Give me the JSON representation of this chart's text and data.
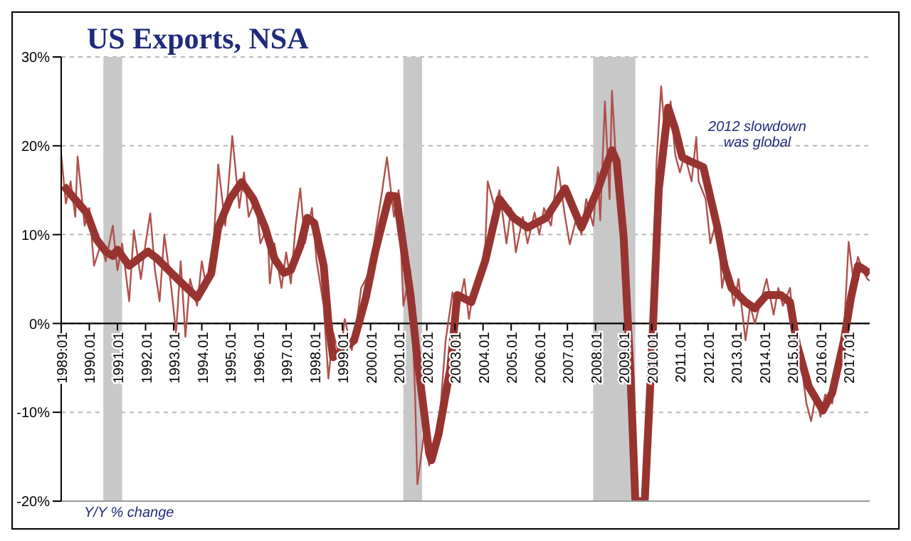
{
  "chart_data": {
    "type": "line",
    "title": "US Exports, NSA",
    "annotations": [
      "2012 slowdown was global",
      "Y/Y % change"
    ],
    "xlim": [
      "1989-01",
      "2017-10"
    ],
    "xticks": [
      {
        "value": "1989-01",
        "label": "1989.01"
      },
      {
        "value": "1990-01",
        "label": "1990.01"
      },
      {
        "value": "1991-01",
        "label": "1991.01"
      },
      {
        "value": "1992-01",
        "label": "1992.01"
      },
      {
        "value": "1993-01",
        "label": "1993.01"
      },
      {
        "value": "1994-01",
        "label": "1994.01"
      },
      {
        "value": "1995-01",
        "label": "1995.01"
      },
      {
        "value": "1996-01",
        "label": "1996.01"
      },
      {
        "value": "1997-01",
        "label": "1997.01"
      },
      {
        "value": "1998-01",
        "label": "1998.01"
      },
      {
        "value": "1999-01",
        "label": "1999.01"
      },
      {
        "value": "2000-01",
        "label": "2000.01"
      },
      {
        "value": "2001-01",
        "label": "2001.01"
      },
      {
        "value": "2002-01",
        "label": "2002.01"
      },
      {
        "value": "2003-01",
        "label": "2003.01"
      },
      {
        "value": "2004-01",
        "label": "2004.01"
      },
      {
        "value": "2005-01",
        "label": "2005.01"
      },
      {
        "value": "2006-01",
        "label": "2006.01"
      },
      {
        "value": "2007-01",
        "label": "2007.01"
      },
      {
        "value": "2008-01",
        "label": "2008.01"
      },
      {
        "value": "2009-01",
        "label": "2009.01"
      },
      {
        "value": "2010-01",
        "label": "2010.01"
      },
      {
        "value": "2011-01",
        "label": "2011.01"
      },
      {
        "value": "2012-01",
        "label": "2012.01"
      },
      {
        "value": "2013-01",
        "label": "2013.01"
      },
      {
        "value": "2014-01",
        "label": "2014.01"
      },
      {
        "value": "2015-01",
        "label": "2015.01"
      },
      {
        "value": "2016-01",
        "label": "2016.01"
      },
      {
        "value": "2017-01",
        "label": "2017.01"
      }
    ],
    "ylim": [
      -20,
      30
    ],
    "yticks": [
      {
        "value": -20,
        "label": "-20%"
      },
      {
        "value": -10,
        "label": "-10%"
      },
      {
        "value": 0,
        "label": "0%"
      },
      {
        "value": 10,
        "label": "10%"
      },
      {
        "value": 20,
        "label": "20%"
      },
      {
        "value": 30,
        "label": "30%"
      }
    ],
    "grid": "y",
    "legend": false,
    "marker": "none",
    "line_style": "solid",
    "bands": [
      {
        "axis": "x",
        "from": "1990-07",
        "to": "1991-03",
        "color": "#c8c8c8"
      },
      {
        "axis": "x",
        "from": "2001-03",
        "to": "2001-11",
        "color": "#c8c8c8"
      },
      {
        "axis": "x",
        "from": "2007-12",
        "to": "2009-06",
        "color": "#c8c8c8"
      }
    ],
    "series": [
      {
        "color": "#b0504c",
        "x": [
          "1989-01",
          "1989-03",
          "1989-05",
          "1989-07",
          "1989-08",
          "1989-11",
          "1990-01",
          "1990-03",
          "1990-06",
          "1990-08",
          "1990-11",
          "1991-01",
          "1991-03",
          "1991-06",
          "1991-08",
          "1991-11",
          "1992-01",
          "1992-03",
          "1992-05",
          "1992-07",
          "1992-09",
          "1992-12",
          "1993-02",
          "1993-04",
          "1993-06",
          "1993-08",
          "1993-11",
          "1994-01",
          "1994-03",
          "1994-06",
          "1994-08",
          "1994-11",
          "1995-02",
          "1995-05",
          "1995-07",
          "1995-09",
          "1995-12",
          "1996-02",
          "1996-05",
          "1996-06",
          "1996-08",
          "1996-11",
          "1997-01",
          "1997-03",
          "1997-05",
          "1997-07",
          "1997-09",
          "1997-12",
          "1998-02",
          "1998-05",
          "1998-07",
          "1998-09",
          "1998-12",
          "1999-02",
          "1999-05",
          "1999-07",
          "1999-09",
          "2000-01",
          "2000-03",
          "2000-06",
          "2000-08",
          "2000-11",
          "2001-01",
          "2001-03",
          "2001-06",
          "2001-08",
          "2001-09",
          "2001-12",
          "2002-02",
          "2002-05",
          "2002-07",
          "2002-09",
          "2002-12",
          "2003-02",
          "2003-05",
          "2003-07",
          "2003-09",
          "2003-12",
          "2004-02",
          "2004-03",
          "2004-06",
          "2004-08",
          "2004-11",
          "2005-01",
          "2005-03",
          "2005-06",
          "2005-08",
          "2005-11",
          "2006-01",
          "2006-03",
          "2006-06",
          "2006-09",
          "2006-12",
          "2007-02",
          "2007-05",
          "2007-07",
          "2007-09",
          "2007-12",
          "2008-02",
          "2008-03",
          "2008-05",
          "2008-07",
          "2008-08",
          "2008-10",
          "2008-12",
          "2009-02",
          "2009-03",
          "2009-05",
          "2009-10",
          "2009-12",
          "2010-02",
          "2010-03",
          "2010-05",
          "2010-07",
          "2010-09",
          "2010-11",
          "2011-01",
          "2011-03",
          "2011-06",
          "2011-08",
          "2011-09",
          "2011-12",
          "2012-02",
          "2012-05",
          "2012-07",
          "2012-09",
          "2012-12",
          "2013-02",
          "2013-05",
          "2013-07",
          "2013-09",
          "2013-12",
          "2014-02",
          "2014-05",
          "2014-07",
          "2014-09",
          "2014-12",
          "2015-02",
          "2015-05",
          "2015-07",
          "2015-09",
          "2015-11",
          "2016-01",
          "2016-03",
          "2016-06",
          "2016-08",
          "2016-11",
          "2017-01",
          "2017-03",
          "2017-05",
          "2017-07",
          "2017-09",
          "2017-10"
        ],
        "values": [
          19,
          13.5,
          16,
          12,
          18.8,
          11,
          13,
          6.5,
          9,
          7,
          11,
          6,
          9,
          2.5,
          10.5,
          5,
          9,
          12.4,
          6,
          2.5,
          10,
          4,
          -1.1,
          7,
          -1.5,
          5,
          2,
          7,
          4,
          9,
          17.9,
          11,
          21.1,
          13,
          17,
          12,
          14,
          9,
          11,
          4.5,
          9,
          4,
          8,
          4.5,
          11,
          15.2,
          9,
          13,
          7,
          2,
          -6.2,
          -1,
          -4,
          0.5,
          -3,
          0,
          4,
          6,
          10,
          15,
          18.7,
          12,
          15,
          2,
          6,
          -8,
          -18.1,
          -12,
          -16,
          -13,
          -9,
          -2,
          3.5,
          1,
          5,
          0.5,
          4,
          6,
          9,
          16,
          13,
          15,
          9,
          13,
          8,
          12,
          9,
          12.5,
          10,
          13,
          11,
          17.6,
          12,
          8.9,
          12,
          10,
          14,
          11,
          17,
          11.6,
          25,
          14,
          26.2,
          17,
          13,
          5,
          -8,
          -20,
          -20,
          -8,
          5,
          18,
          26.7,
          20,
          25,
          19,
          17,
          19,
          16,
          21,
          16,
          14,
          9,
          12,
          4,
          7,
          2,
          5,
          -1.9,
          2,
          0,
          3,
          5,
          1,
          4,
          2,
          4,
          -2,
          -5,
          -9,
          -11,
          -8,
          -10.5,
          -8,
          -9,
          -5,
          -1,
          9.2,
          5,
          7.5,
          6,
          5,
          4.8
        ]
      },
      {
        "color": "#983430",
        "x": [
          "1989-02",
          "1989-12",
          "1990-04",
          "1990-08",
          "1990-11",
          "1991-01",
          "1991-06",
          "1992-02",
          "1992-06",
          "1992-12",
          "1993-05",
          "1993-11",
          "1994-05",
          "1994-08",
          "1995-01",
          "1995-06",
          "1995-11",
          "1996-04",
          "1996-08",
          "1996-12",
          "1997-03",
          "1997-07",
          "1997-10",
          "1998-01",
          "1998-05",
          "1998-07",
          "1998-09",
          "1999-01",
          "1999-06",
          "1999-11",
          "2000-03",
          "2000-09",
          "2000-12",
          "2001-03",
          "2001-06",
          "2001-09",
          "2001-12",
          "2002-02",
          "2002-03",
          "2002-06",
          "2002-11",
          "2003-02",
          "2003-08",
          "2004-02",
          "2004-08",
          "2005-02",
          "2005-08",
          "2006-04",
          "2006-12",
          "2007-07",
          "2008-02",
          "2008-08",
          "2008-10",
          "2009-01",
          "2009-04",
          "2009-06",
          "2009-10",
          "2010-01",
          "2010-04",
          "2010-08",
          "2010-11",
          "2011-02",
          "2011-05",
          "2011-11",
          "2012-05",
          "2012-08",
          "2012-11",
          "2013-05",
          "2013-09",
          "2014-02",
          "2014-08",
          "2014-12",
          "2015-03",
          "2015-08",
          "2016-02",
          "2016-06",
          "2016-11",
          "2017-02",
          "2017-05",
          "2017-08",
          "2017-10"
        ],
        "values": [
          15.5,
          12.4,
          9.5,
          8.1,
          7.6,
          8.3,
          6.5,
          8.1,
          7.3,
          5.7,
          4.4,
          2.9,
          5.6,
          10.8,
          14,
          15.9,
          14,
          10.8,
          7.3,
          5.7,
          6,
          8.7,
          11.9,
          11.3,
          6.5,
          0.2,
          -3.8,
          -3,
          -1.9,
          2.9,
          8.1,
          14.4,
          14.3,
          8.7,
          3.3,
          -4,
          -10.3,
          -14.6,
          -15.4,
          -12.5,
          -5.1,
          3.2,
          2.4,
          7.1,
          14,
          11.9,
          10.8,
          11.9,
          15.2,
          10.8,
          15.1,
          19.5,
          18.3,
          9.7,
          -6.2,
          -20,
          -20,
          -3.5,
          15.1,
          24.3,
          21.9,
          18.7,
          18.3,
          17.6,
          10.8,
          6.5,
          4,
          2.4,
          1.7,
          3.2,
          3.2,
          2.4,
          -2.4,
          -7.1,
          -9.8,
          -7.8,
          -1.9,
          2.9,
          6.5,
          6,
          5.6
        ]
      }
    ]
  }
}
